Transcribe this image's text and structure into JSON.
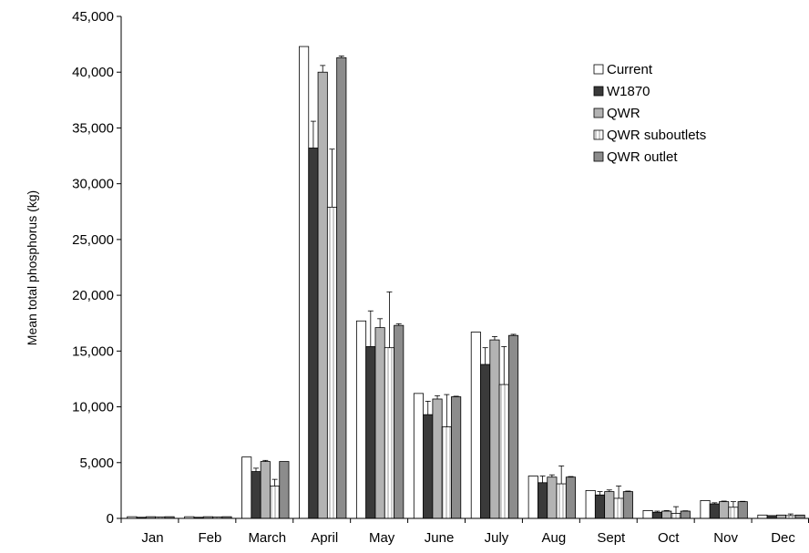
{
  "chart_data": {
    "type": "bar",
    "title": "",
    "xlabel": "",
    "ylabel": "Mean total phosphorus (kg)",
    "ylim": [
      0,
      45000
    ],
    "ytick_labels": [
      "0",
      "5,000",
      "10,000",
      "15,000",
      "20,000",
      "25,000",
      "30,000",
      "35,000",
      "40,000",
      "45,000"
    ],
    "yticks": [
      0,
      5000,
      10000,
      15000,
      20000,
      25000,
      30000,
      35000,
      40000,
      45000
    ],
    "categories": [
      "Jan",
      "Feb",
      "March",
      "April",
      "May",
      "June",
      "July",
      "Aug",
      "Sept",
      "Oct",
      "Nov",
      "Dec"
    ],
    "grid": false,
    "legend_position": "top-right",
    "series": [
      {
        "name": "Current",
        "fill": "#ffffff",
        "pattern": "none",
        "values": [
          150,
          150,
          5500,
          42300,
          17700,
          11200,
          16700,
          3800,
          2500,
          700,
          1600,
          300
        ],
        "errors": [
          0,
          0,
          0,
          0,
          0,
          0,
          0,
          0,
          0,
          0,
          0,
          0
        ]
      },
      {
        "name": "W1870",
        "fill": "#3a3a3a",
        "pattern": "none",
        "values": [
          100,
          100,
          4200,
          33200,
          15400,
          9300,
          13800,
          3200,
          2100,
          550,
          1300,
          250
        ],
        "errors": [
          0,
          0,
          300,
          2400,
          3200,
          1200,
          1500,
          600,
          300,
          100,
          100,
          0
        ]
      },
      {
        "name": "QWR",
        "fill": "#b3b3b3",
        "pattern": "none",
        "values": [
          150,
          150,
          5100,
          40000,
          17100,
          10700,
          16000,
          3700,
          2400,
          650,
          1500,
          300
        ],
        "errors": [
          0,
          0,
          100,
          600,
          800,
          300,
          300,
          200,
          150,
          50,
          50,
          0
        ]
      },
      {
        "name": "QWR suboutlets",
        "fill": "#ffffff",
        "pattern": "stripe",
        "values": [
          120,
          120,
          2900,
          27900,
          15300,
          8200,
          12000,
          3100,
          1800,
          450,
          1000,
          250
        ],
        "errors": [
          0,
          0,
          600,
          5200,
          5000,
          2900,
          3400,
          1600,
          1100,
          600,
          500,
          150
        ]
      },
      {
        "name": "QWR outlet",
        "fill": "#8c8c8c",
        "pattern": "none",
        "values": [
          150,
          150,
          5100,
          41300,
          17300,
          10900,
          16400,
          3700,
          2400,
          650,
          1500,
          300
        ],
        "errors": [
          0,
          0,
          0,
          150,
          150,
          50,
          100,
          50,
          50,
          30,
          30,
          0
        ]
      }
    ]
  }
}
